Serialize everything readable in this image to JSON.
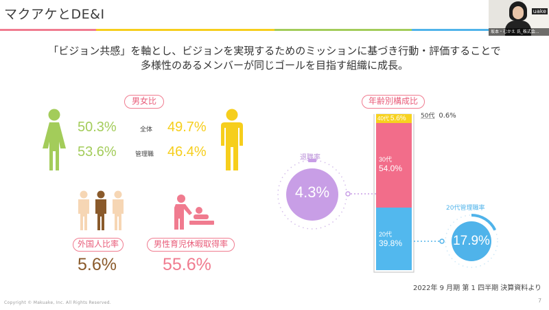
{
  "slide": {
    "title": "マクアケとDE&I",
    "page_number": "7",
    "copyright": "Copyright © Makuake, Inc. All Rights Reserved."
  },
  "headline": {
    "line1": "「ビジョン共感」を軸とし、ビジョンを実現するためのミッションに基づき行動・評価することで",
    "line2": "多様性のあるメンバーが同じゴールを目指す組織に成長。"
  },
  "gender": {
    "pill": "男女比",
    "rows": [
      {
        "label": "全体",
        "female": "50.3%",
        "male": "49.7%"
      },
      {
        "label": "管理職",
        "female": "53.6%",
        "male": "46.4%"
      }
    ]
  },
  "foreign": {
    "pill": "外国人比率",
    "value": "5.6%"
  },
  "childcare": {
    "pill": "男性育児休暇取得率",
    "value": "55.6%"
  },
  "turnover": {
    "label": "退職率",
    "value": "4.3%"
  },
  "age": {
    "pill": "年齢別構成比",
    "segments": [
      {
        "label": "20代",
        "value": "39.8%",
        "pct": 39.8,
        "color": "#52b8ee"
      },
      {
        "label": "30代",
        "value": "54.0%",
        "pct": 54.0,
        "color": "#f26d8a"
      },
      {
        "label": "40代",
        "value": "5.6%",
        "pct": 5.6,
        "color": "#f7d21f"
      },
      {
        "label": "50代",
        "value": "0.6%",
        "pct": 0.6,
        "color": "#e8e8e8"
      }
    ]
  },
  "manager20s": {
    "label": "20代管理職率",
    "value": "17.9%",
    "fraction": 0.179
  },
  "source_note": "2022年 9 月期 第 1 四半期 決算資料より",
  "webcam": {
    "brand": "uake",
    "caption": "坂本・むかえ 氏_株式会..."
  },
  "colors": {
    "female": "#a3cc5a",
    "male": "#f6ce1c",
    "pink": "#f07b8f",
    "brown": "#8a5a2b",
    "purple": "#c89ee6",
    "blue": "#4fb3ea"
  }
}
